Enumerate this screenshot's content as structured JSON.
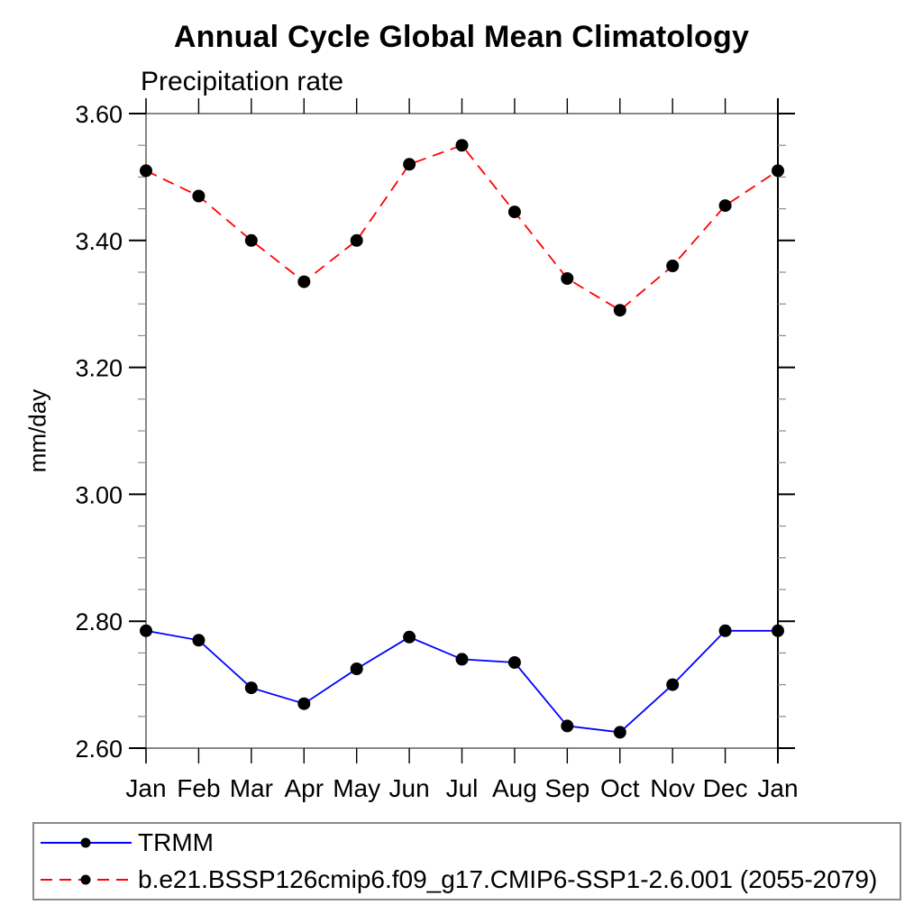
{
  "title": "Annual Cycle Global Mean Climatology",
  "subtitle": "Precipitation rate",
  "ylabel": "mm/day",
  "chart_data": {
    "type": "line",
    "categories": [
      "Jan",
      "Feb",
      "Mar",
      "Apr",
      "May",
      "Jun",
      "Jul",
      "Aug",
      "Sep",
      "Oct",
      "Nov",
      "Dec",
      "Jan"
    ],
    "series": [
      {
        "name": "TRMM",
        "color": "#0000ff",
        "line_style": "solid",
        "marker": "filled-circle",
        "marker_color": "#000000",
        "values": [
          2.785,
          2.77,
          2.695,
          2.67,
          2.725,
          2.775,
          2.74,
          2.735,
          2.635,
          2.625,
          2.7,
          2.785,
          2.785
        ]
      },
      {
        "name": "b.e21.BSSP126cmip6.f09_g17.CMIP6-SSP1-2.6.001 (2055-2079)",
        "color": "#ff0000",
        "line_style": "dashed",
        "marker": "filled-circle",
        "marker_color": "#000000",
        "values": [
          3.51,
          3.47,
          3.4,
          3.335,
          3.4,
          3.52,
          3.55,
          3.445,
          3.34,
          3.29,
          3.36,
          3.455,
          3.51
        ]
      }
    ],
    "ylim": [
      2.6,
      3.6
    ],
    "yticks": [
      2.6,
      2.8,
      3.0,
      3.2,
      3.4,
      3.6
    ],
    "ytick_minor_step": 0.05,
    "ytick_label_decimals": 2,
    "grid": false,
    "legend_position": "bottom-left-box",
    "axis_colors": {
      "frame": "#606060",
      "right_axis": "#000000",
      "major_tick": "#000000",
      "minor_tick": "#8c8c8c"
    }
  }
}
